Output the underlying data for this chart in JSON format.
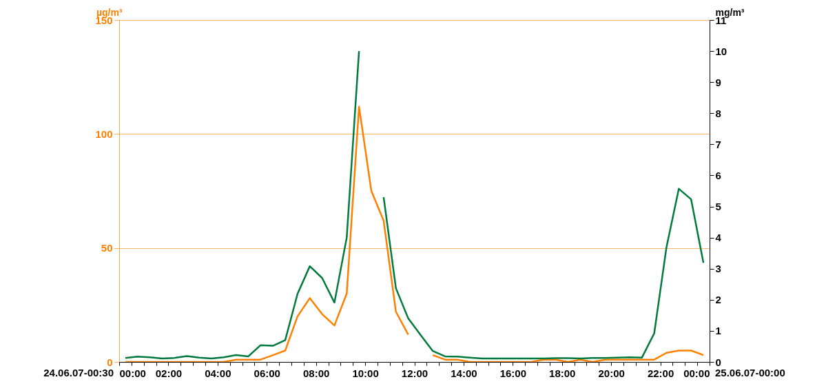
{
  "chart_data": {
    "type": "line",
    "ylabel": "µg/m³",
    "y2label": "mg/m³",
    "x": [
      0.25,
      0.75,
      1.25,
      1.75,
      2.25,
      2.75,
      3.25,
      3.75,
      4.25,
      4.75,
      5.25,
      5.75,
      6.25,
      6.75,
      7.25,
      7.75,
      8.25,
      8.75,
      9.25,
      9.75,
      10.25,
      10.75,
      11.25,
      11.75,
      12.25,
      12.75,
      13.25,
      13.75,
      14.25,
      14.75,
      15.25,
      15.75,
      16.25,
      16.75,
      17.25,
      17.75,
      18.25,
      18.75,
      19.25,
      19.75,
      20.25,
      20.75,
      21.25,
      21.75,
      22.25,
      22.75,
      23.25,
      23.75
    ],
    "series": [
      {
        "color": "#ff8000",
        "values": [
          0,
          0,
          0,
          0,
          0,
          0,
          0,
          0,
          0,
          1,
          1,
          1,
          3,
          5,
          20,
          28,
          21,
          16,
          30,
          112,
          75,
          62,
          22,
          12,
          null,
          3,
          1,
          1,
          0,
          0,
          0,
          0,
          0,
          0,
          1,
          1,
          0,
          1,
          0,
          1,
          1,
          1,
          1,
          1,
          4,
          5,
          5,
          3
        ]
      },
      {
        "color": "#007a3d",
        "axis": "y2",
        "values": [
          0.13,
          0.17,
          0.15,
          0.11,
          0.13,
          0.19,
          0.14,
          0.11,
          0.15,
          0.22,
          0.18,
          0.54,
          0.52,
          0.7,
          2.19,
          3.08,
          2.7,
          1.91,
          4.0,
          10.0,
          null,
          5.3,
          2.37,
          1.4,
          0.87,
          0.35,
          0.18,
          0.17,
          0.14,
          0.11,
          0.11,
          0.11,
          0.11,
          0.11,
          0.11,
          0.12,
          0.12,
          0.11,
          0.13,
          0.13,
          0.14,
          0.15,
          0.14,
          0.92,
          3.7,
          5.57,
          5.23,
          3.19
        ]
      }
    ],
    "xlim": [
      0,
      24
    ],
    "xticks": [
      {
        "value": 0,
        "label": "00:00"
      },
      {
        "value": 0.5,
        "label": null
      },
      {
        "value": 1,
        "label": null
      },
      {
        "value": 1.5,
        "label": null
      },
      {
        "value": 2,
        "label": "02:00"
      },
      {
        "value": 2.5,
        "label": null
      },
      {
        "value": 3,
        "label": null
      },
      {
        "value": 3.5,
        "label": null
      },
      {
        "value": 4,
        "label": "04:00"
      },
      {
        "value": 4.5,
        "label": null
      },
      {
        "value": 5,
        "label": null
      },
      {
        "value": 5.5,
        "label": null
      },
      {
        "value": 6,
        "label": "06:00"
      },
      {
        "value": 6.5,
        "label": null
      },
      {
        "value": 7,
        "label": null
      },
      {
        "value": 7.5,
        "label": null
      },
      {
        "value": 8,
        "label": "08:00"
      },
      {
        "value": 8.5,
        "label": null
      },
      {
        "value": 9,
        "label": null
      },
      {
        "value": 9.5,
        "label": null
      },
      {
        "value": 10,
        "label": "10:00"
      },
      {
        "value": 10.5,
        "label": null
      },
      {
        "value": 11,
        "label": null
      },
      {
        "value": 11.5,
        "label": null
      },
      {
        "value": 12,
        "label": "12:00"
      },
      {
        "value": 12.5,
        "label": null
      },
      {
        "value": 13,
        "label": null
      },
      {
        "value": 13.5,
        "label": null
      },
      {
        "value": 14,
        "label": "14:00"
      },
      {
        "value": 14.5,
        "label": null
      },
      {
        "value": 15,
        "label": null
      },
      {
        "value": 15.5,
        "label": null
      },
      {
        "value": 16,
        "label": "16:00"
      },
      {
        "value": 16.5,
        "label": null
      },
      {
        "value": 17,
        "label": null
      },
      {
        "value": 17.5,
        "label": null
      },
      {
        "value": 18,
        "label": "18:00"
      },
      {
        "value": 18.5,
        "label": null
      },
      {
        "value": 19,
        "label": null
      },
      {
        "value": 19.5,
        "label": null
      },
      {
        "value": 20,
        "label": "20:00"
      },
      {
        "value": 20.5,
        "label": null
      },
      {
        "value": 21,
        "label": null
      },
      {
        "value": 21.5,
        "label": null
      },
      {
        "value": 22,
        "label": "22:00"
      },
      {
        "value": 22.5,
        "label": null
      },
      {
        "value": 23,
        "label": null
      },
      {
        "value": 23.5,
        "label": null
      },
      {
        "value": 24,
        "label": "00:00"
      }
    ],
    "ylim": [
      0,
      150
    ],
    "yticks": [
      0,
      50,
      100,
      150
    ],
    "y2lim": [
      0,
      11
    ],
    "y2ticks": [
      0,
      1,
      2,
      3,
      4,
      5,
      6,
      7,
      8,
      9,
      10,
      11
    ],
    "grid": "y",
    "annotations": [
      "24.06.07-00:30",
      "25.06.07-00:00"
    ]
  }
}
